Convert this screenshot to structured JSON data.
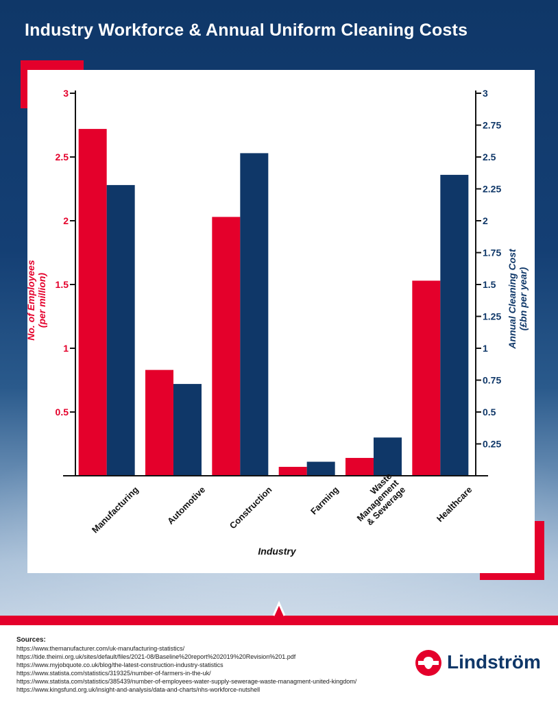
{
  "title": "Industry Workforce & Annual Uniform Cleaning Costs",
  "colors": {
    "employees": "#e4002b",
    "cost": "#0f3768",
    "brand": "#e4002b"
  },
  "chart_data": {
    "type": "bar",
    "categories": [
      "Manufacturing",
      "Automotive",
      "Construction",
      "Farming",
      "Waste Management & Sewerage",
      "Healthcare"
    ],
    "category_lines": [
      [
        "Manufacturing"
      ],
      [
        "Automotive"
      ],
      [
        "Construction"
      ],
      [
        "Farming"
      ],
      [
        "Waste",
        "Management",
        "& Sewerage"
      ],
      [
        "Healthcare"
      ]
    ],
    "series": [
      {
        "axis": "left",
        "color": "#e4002b",
        "values": [
          2.72,
          0.83,
          2.03,
          0.07,
          0.14,
          1.53
        ]
      },
      {
        "axis": "right",
        "color": "#0f3768",
        "values": [
          2.28,
          0.72,
          2.53,
          0.11,
          0.3,
          2.36
        ]
      }
    ],
    "xlabel": "Industry",
    "ylabel_left": [
      "No. of Employees",
      "(per million)"
    ],
    "ylabel_right": [
      "Annual Cleaning Cost",
      "(£bn per year)"
    ],
    "ylim_left": [
      0,
      3
    ],
    "ylim_right": [
      0,
      3
    ],
    "left_ticks": [
      "0.5",
      "1",
      "1.5",
      "2",
      "2.5",
      "3"
    ],
    "left_tick_values": [
      0.5,
      1,
      1.5,
      2,
      2.5,
      3
    ],
    "right_ticks": [
      "0.25",
      "0.5",
      "0.75",
      "1",
      "1.25",
      "1.5",
      "1.75",
      "2",
      "2.25",
      "2.5",
      "2.75",
      "3"
    ],
    "right_tick_values": [
      0.25,
      0.5,
      0.75,
      1,
      1.25,
      1.5,
      1.75,
      2,
      2.25,
      2.5,
      2.75,
      3
    ],
    "grid": false,
    "legend": "none"
  },
  "sources": {
    "heading": "Sources:",
    "lines": [
      "https://www.themanufacturer.com/uk-manufacturing-statistics/",
      "https://tide.theimi.org.uk/sites/default/files/2021-08/Baseline%20report%202019%20Revision%201.pdf",
      "https://www.myjobquote.co.uk/blog/the-latest-construction-industry-statistics",
      "https://www.statista.com/statistics/319325/number-of-farmers-in-the-uk/",
      "https://www.statista.com/statistics/385439/number-of-employees-water-supply-sewerage-waste-managment-united-kingdom/",
      "https://www.kingsfund.org.uk/insight-and-analysis/data-and-charts/nhs-workforce-nutshell"
    ]
  },
  "logo": {
    "name": "Lindström",
    "icon": "lindstrom-logo-icon"
  }
}
